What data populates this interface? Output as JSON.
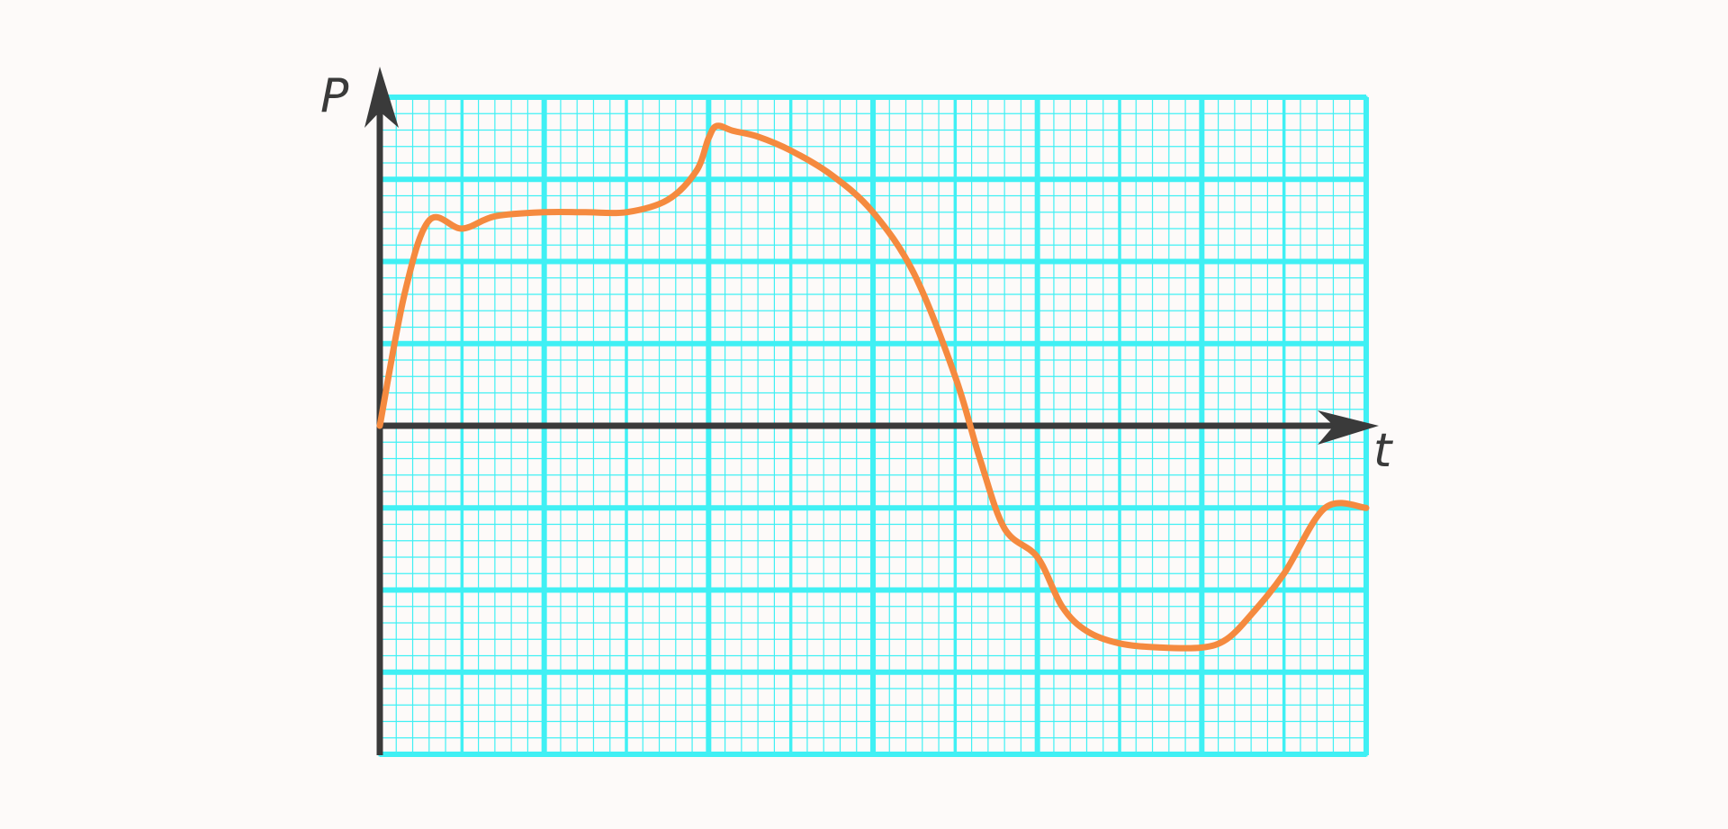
{
  "chart_data": {
    "type": "line",
    "xlabel": "t",
    "ylabel": "P",
    "x_range": [
      0,
      12
    ],
    "y_range": [
      -4,
      4
    ],
    "grid": true,
    "grid_major_x_step": 1,
    "grid_major_y_step": 1,
    "grid_minor_divisions": 5,
    "colors": {
      "background": "#fdfaf9",
      "grid": "#40f0f4",
      "axis": "#3a3a3a",
      "curve": "#f58a3f"
    },
    "series": [
      {
        "x": [
          0,
          0.3,
          0.6,
          1.0,
          1.4,
          2.0,
          2.5,
          3.0,
          3.5,
          3.85,
          4.0,
          4.1,
          4.3,
          4.6,
          5.0,
          5.5,
          6.0,
          6.5,
          7.0,
          7.3,
          7.6,
          8.0,
          8.3,
          8.6,
          9.0,
          9.5,
          10.0,
          10.3,
          10.6,
          11.0,
          11.5,
          12.0
        ],
        "y": [
          0,
          1.6,
          2.5,
          2.4,
          2.55,
          2.6,
          2.6,
          2.6,
          2.75,
          3.1,
          3.5,
          3.65,
          3.59,
          3.52,
          3.35,
          3.05,
          2.6,
          1.85,
          0.6,
          -0.4,
          -1.25,
          -1.6,
          -2.2,
          -2.5,
          -2.65,
          -2.7,
          -2.7,
          -2.6,
          -2.3,
          -1.8,
          -1.0,
          -1.0
        ]
      }
    ]
  }
}
